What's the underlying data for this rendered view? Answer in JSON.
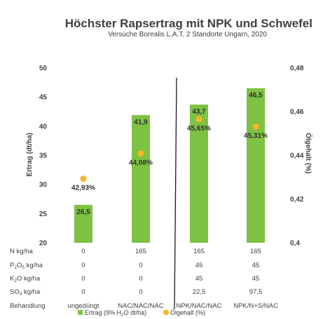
{
  "chart_data": {
    "type": "bar",
    "title": "Höchster Rapsertrag mit NPK und Schwefel",
    "subtitle": "Versuche Borealis L.A.T, 2 Standorte Ungarn, 2020",
    "categories": [
      "ungedüngt",
      "NAC/NAC/NAC",
      "NPK/NAC/NAC",
      "NPK/N+S/NAC"
    ],
    "series": [
      {
        "name": "Ertrag (9% H2O dt/ha)",
        "axis": "left",
        "kind": "bar",
        "color": "#7dc242",
        "values": [
          26.5,
          41.9,
          43.7,
          46.5
        ],
        "labels": [
          "26,5",
          "41,9",
          "43,7",
          "46,5"
        ]
      },
      {
        "name": "Ölgehalt (%)",
        "axis": "right",
        "kind": "point",
        "color": "#f7b52c",
        "values": [
          0.4293,
          0.4408,
          0.4565,
          0.4531
        ],
        "labels": [
          "42,93%",
          "44,08%",
          "45,65%",
          "45,31%"
        ]
      }
    ],
    "ylabel": "Ertrag (dt/ha)",
    "ylim": [
      20,
      50
    ],
    "yticks": [
      "20",
      "25",
      "30",
      "35",
      "40",
      "45",
      "50"
    ],
    "y2label": "Ölgehalt (%)",
    "y2lim": [
      0.4,
      0.48
    ],
    "y2ticks": [
      "0,4",
      "0,42",
      "0,44",
      "0,46",
      "0,48"
    ],
    "grid": false,
    "legend_position": "bottom",
    "table": {
      "rows": [
        {
          "label": "N kg/ha",
          "values": [
            "0",
            "165",
            "165",
            "165"
          ]
        },
        {
          "label": "P2O5 kg/ha",
          "values": [
            "0",
            "0",
            "45",
            "45"
          ]
        },
        {
          "label": "K2O kg/ha",
          "values": [
            "0",
            "0",
            "45",
            "45"
          ]
        },
        {
          "label": "SO3 kg/ha",
          "values": [
            "0",
            "0",
            "22,5",
            "97,5"
          ]
        },
        {
          "label": "Behandlung",
          "values": [
            "ungedüngt",
            "NAC/NAC/NAC",
            "NPK/NAC/NAC",
            "NPK/N+S/NAC"
          ]
        }
      ]
    }
  }
}
